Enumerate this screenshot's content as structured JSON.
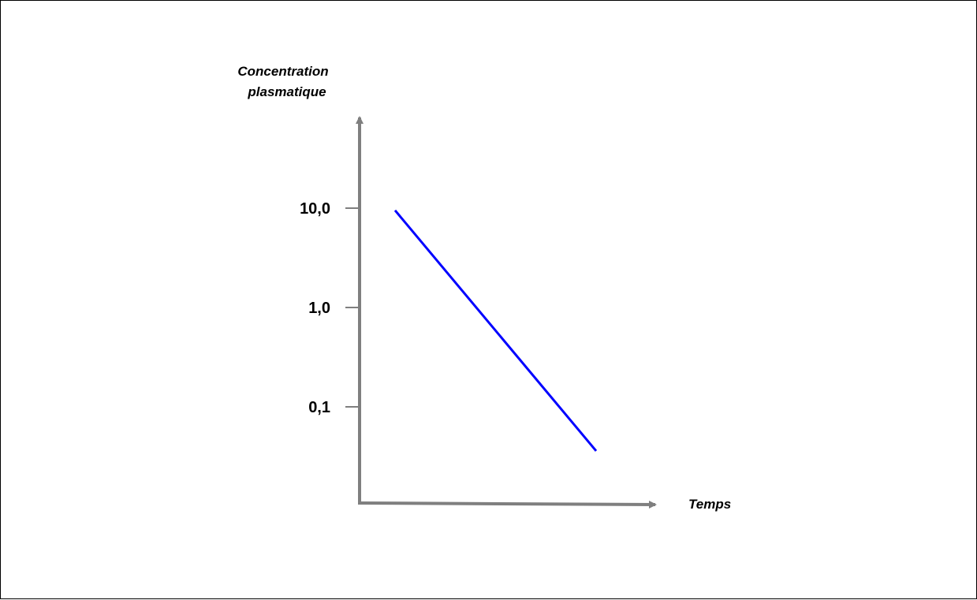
{
  "chart_data": {
    "type": "line",
    "ylabel_lines": [
      "Concentration",
      "plasmatique"
    ],
    "xlabel": "Temps",
    "yscale": "log",
    "yticks": [
      {
        "value": 10,
        "label": "10,0"
      },
      {
        "value": 1,
        "label": "1,0"
      },
      {
        "value": 0.1,
        "label": "0,1"
      }
    ],
    "ylim": [
      0.008,
      1000
    ],
    "xlim": [
      0,
      10
    ],
    "grid": false,
    "series": [
      {
        "color": "#0000ff",
        "x": [
          1.2,
          8.0
        ],
        "y": [
          9.5,
          0.036
        ]
      }
    ],
    "axis_color": "#7f7f7f"
  }
}
